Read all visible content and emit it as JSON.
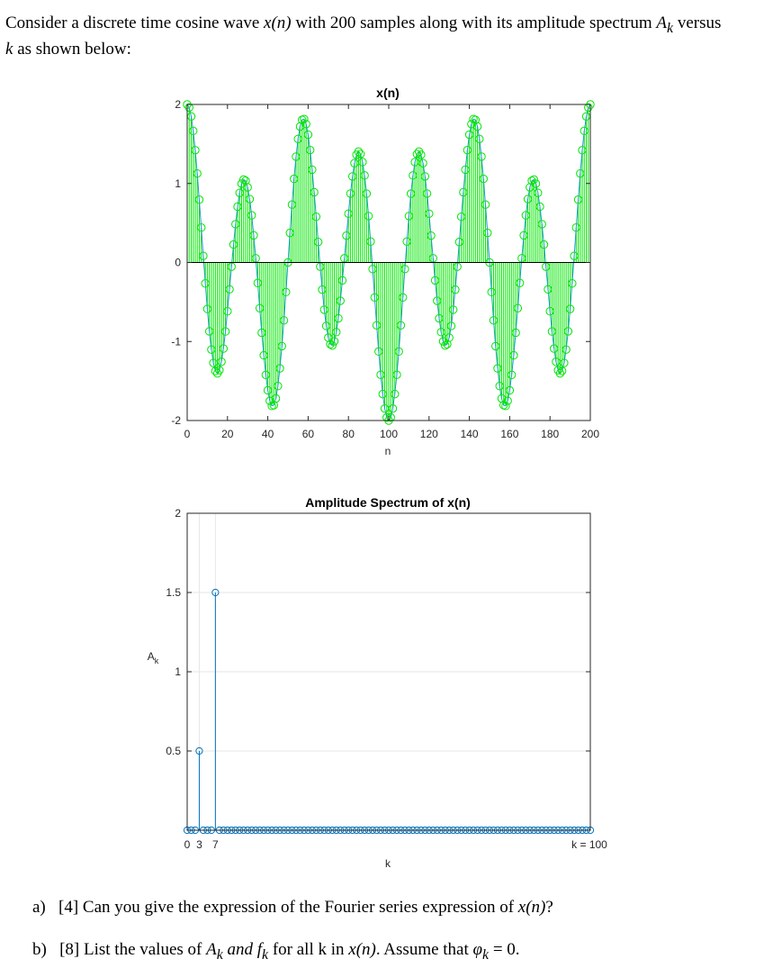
{
  "intro": {
    "part1": "Consider a discrete time cosine wave ",
    "signal": "x(n)",
    "part2": " with 200 samples along with its amplitude spectrum ",
    "amp_sym": "A",
    "amp_sub": "k",
    "part3": " versus ",
    "k_sym": "k",
    "part4": " as shown below:"
  },
  "chart_data": [
    {
      "type": "stem",
      "title": "x(n)",
      "xlabel": "n",
      "ylabel": "",
      "xlim": [
        0,
        200
      ],
      "ylim": [
        -2,
        2
      ],
      "xticks": [
        "0",
        "20",
        "40",
        "60",
        "80",
        "100",
        "120",
        "140",
        "160",
        "180",
        "200"
      ],
      "yticks": [
        "-2",
        "-1",
        "0",
        "1",
        "2"
      ],
      "n_samples": 200,
      "components": [
        {
          "k": 3,
          "amplitude": 0.5
        },
        {
          "k": 7,
          "amplitude": 1.5
        }
      ],
      "color_marker": "#00e600",
      "color_line": "#1f9bd6",
      "grid": false
    },
    {
      "type": "stem",
      "title": "Amplitude Spectrum of x(n)",
      "xlabel": "k",
      "ylabel_main": "A",
      "ylabel_sub": "k",
      "xlim": [
        0,
        100
      ],
      "ylim": [
        0,
        2
      ],
      "yticks": [
        "0.5",
        "1",
        "1.5",
        "2"
      ],
      "xticks": [
        "0",
        "3",
        "7"
      ],
      "end_label": "k = 100",
      "values": [
        {
          "k": 3,
          "A": 0.5
        },
        {
          "k": 7,
          "A": 1.5
        }
      ],
      "k_count": 101,
      "color": "#0072bd",
      "grid": true
    }
  ],
  "questions": {
    "a": {
      "label": "a)",
      "marks": "[4]",
      "text1": " Can you give the expression of the Fourier series expression of ",
      "sig": "x(n)",
      "text2": "?"
    },
    "b": {
      "label": "b)",
      "marks": "[8]",
      "text1": " List the values of ",
      "Ak": "A",
      "Ak_sub": "k",
      "and": " and ",
      "fk": "f",
      "fk_sub": "k",
      "text2": " for all k in ",
      "sig": "x(n)",
      "text3": ". Assume that ",
      "phi": "φ",
      "phi_sub": "k",
      "text4": " = 0."
    }
  }
}
